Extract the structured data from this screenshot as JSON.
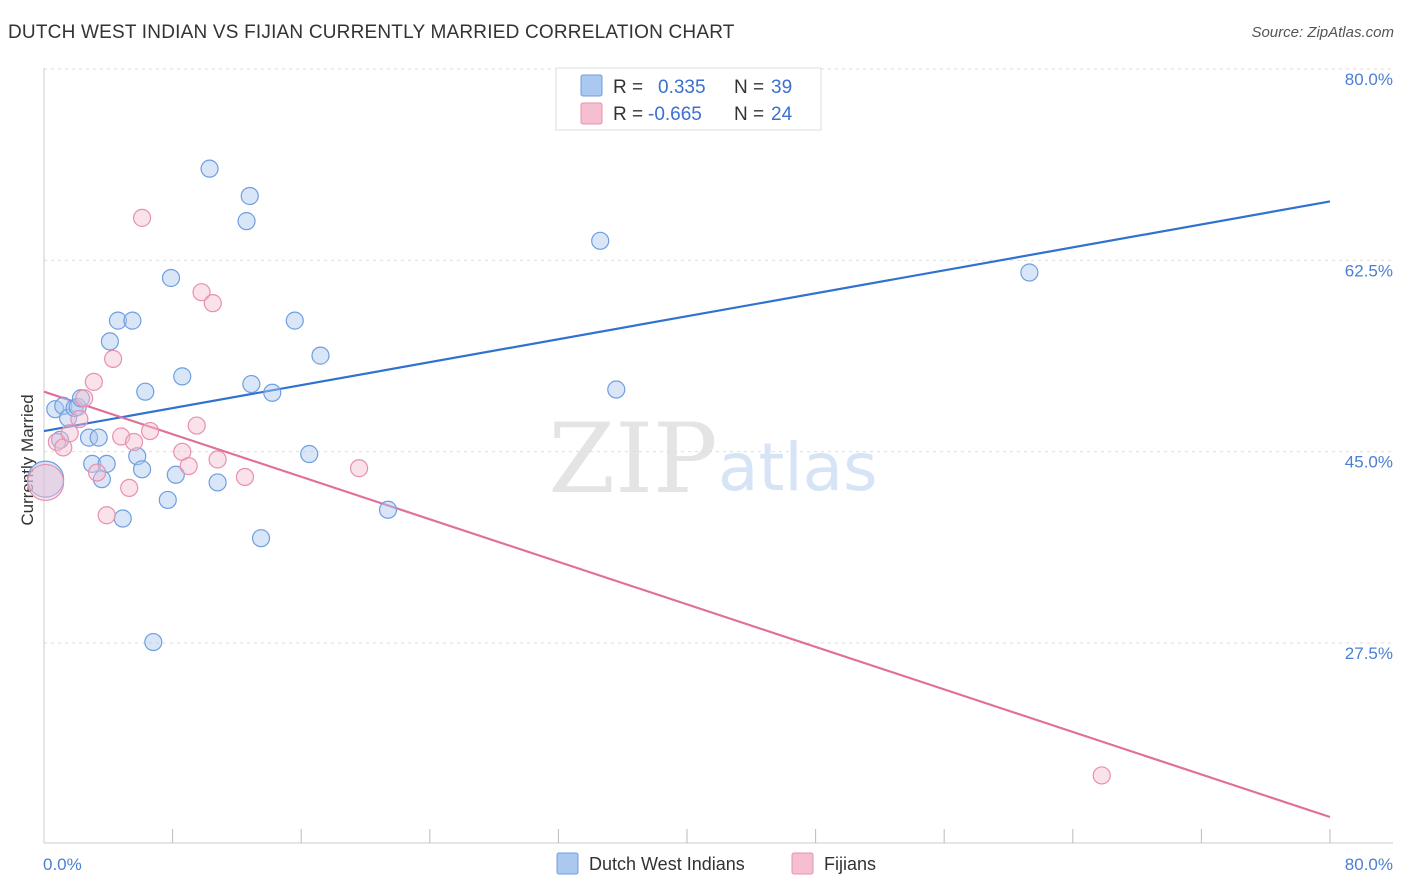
{
  "header": {
    "title": "DUTCH WEST INDIAN VS FIJIAN CURRENTLY MARRIED CORRELATION CHART",
    "source": "Source: ZipAtlas.com"
  },
  "watermark": {
    "zip": "ZIP",
    "atlas": "atlas"
  },
  "colors": {
    "blue_fill": "#aac8f0",
    "blue_stroke": "#6f9ee0",
    "blue_line": "#2f72d0",
    "pink_fill": "#f5bfd0",
    "pink_stroke": "#e890ae",
    "pink_line": "#e0709a",
    "grid": "#dddddd",
    "tick_text": "#4a7fd4"
  },
  "legend": {
    "rows": [
      {
        "r_label": "R =",
        "r_value": "0.335",
        "n_label": "N =",
        "n_value": "39",
        "series": "blue"
      },
      {
        "r_label": "R =",
        "r_value": "-0.665",
        "n_label": "N =",
        "n_value": "24",
        "series": "pink"
      }
    ]
  },
  "bottom_legend": {
    "items": [
      {
        "label": "Dutch West Indians",
        "series": "blue"
      },
      {
        "label": "Fijians",
        "series": "pink"
      }
    ]
  },
  "chart_data": {
    "type": "scatter",
    "title": "DUTCH WEST INDIAN VS FIJIAN CURRENTLY MARRIED CORRELATION CHART",
    "xlabel": "",
    "ylabel": "Currently Married",
    "xlim": [
      0,
      80
    ],
    "ylim": [
      10,
      82
    ],
    "x_tick_labels": [
      {
        "value": 0,
        "label": "0.0%"
      },
      {
        "value": 80,
        "label": "80.0%"
      }
    ],
    "y_ticks": [
      {
        "value": 80.0,
        "label": "80.0%"
      },
      {
        "value": 62.5,
        "label": "62.5%"
      },
      {
        "value": 45.0,
        "label": "45.0%"
      },
      {
        "value": 27.5,
        "label": "27.5%"
      }
    ],
    "x_minor_ticks": [
      8,
      16,
      24,
      32,
      40,
      48,
      56,
      64,
      72,
      80
    ],
    "series": [
      {
        "name": "Dutch West Indians",
        "color": "blue",
        "R": 0.335,
        "N": 39,
        "trend": {
          "x": [
            0,
            80
          ],
          "y": [
            47.8,
            68.8
          ]
        },
        "points": [
          {
            "x": 0.1,
            "y": 43.4,
            "big": true
          },
          {
            "x": 0.7,
            "y": 49.8
          },
          {
            "x": 1.0,
            "y": 47.0
          },
          {
            "x": 1.2,
            "y": 50.1
          },
          {
            "x": 1.5,
            "y": 49.0
          },
          {
            "x": 1.9,
            "y": 49.9
          },
          {
            "x": 2.1,
            "y": 50.0
          },
          {
            "x": 2.3,
            "y": 50.8
          },
          {
            "x": 2.8,
            "y": 47.2
          },
          {
            "x": 3.0,
            "y": 44.8
          },
          {
            "x": 3.4,
            "y": 47.2
          },
          {
            "x": 3.6,
            "y": 43.4
          },
          {
            "x": 3.9,
            "y": 44.8
          },
          {
            "x": 4.1,
            "y": 56.0
          },
          {
            "x": 4.6,
            "y": 57.9
          },
          {
            "x": 4.9,
            "y": 39.8
          },
          {
            "x": 5.5,
            "y": 57.9
          },
          {
            "x": 5.8,
            "y": 45.5
          },
          {
            "x": 6.1,
            "y": 44.3
          },
          {
            "x": 6.3,
            "y": 51.4
          },
          {
            "x": 6.8,
            "y": 28.5
          },
          {
            "x": 7.7,
            "y": 41.5
          },
          {
            "x": 7.9,
            "y": 61.8
          },
          {
            "x": 8.2,
            "y": 43.8
          },
          {
            "x": 8.6,
            "y": 52.8
          },
          {
            "x": 10.3,
            "y": 71.8
          },
          {
            "x": 10.8,
            "y": 43.1
          },
          {
            "x": 12.6,
            "y": 67.0
          },
          {
            "x": 12.8,
            "y": 69.3
          },
          {
            "x": 12.9,
            "y": 52.1
          },
          {
            "x": 13.5,
            "y": 38.0
          },
          {
            "x": 14.2,
            "y": 51.3
          },
          {
            "x": 15.6,
            "y": 57.9
          },
          {
            "x": 16.5,
            "y": 45.7
          },
          {
            "x": 17.2,
            "y": 54.7
          },
          {
            "x": 21.4,
            "y": 40.6
          },
          {
            "x": 34.6,
            "y": 65.2
          },
          {
            "x": 35.6,
            "y": 51.6
          },
          {
            "x": 61.3,
            "y": 62.3
          }
        ]
      },
      {
        "name": "Fijians",
        "color": "pink",
        "R": -0.665,
        "N": 24,
        "trend": {
          "x": [
            0,
            80
          ],
          "y": [
            51.4,
            12.5
          ]
        },
        "points": [
          {
            "x": 0.1,
            "y": 43.1,
            "big": true
          },
          {
            "x": 0.8,
            "y": 46.8
          },
          {
            "x": 1.2,
            "y": 46.3
          },
          {
            "x": 1.6,
            "y": 47.6
          },
          {
            "x": 2.2,
            "y": 48.9
          },
          {
            "x": 2.5,
            "y": 50.8
          },
          {
            "x": 3.1,
            "y": 52.3
          },
          {
            "x": 3.3,
            "y": 44.0
          },
          {
            "x": 3.9,
            "y": 40.1
          },
          {
            "x": 4.3,
            "y": 54.4
          },
          {
            "x": 4.8,
            "y": 47.3
          },
          {
            "x": 5.3,
            "y": 42.6
          },
          {
            "x": 5.6,
            "y": 46.8
          },
          {
            "x": 6.1,
            "y": 67.3
          },
          {
            "x": 6.6,
            "y": 47.8
          },
          {
            "x": 8.6,
            "y": 45.9
          },
          {
            "x": 9.0,
            "y": 44.6
          },
          {
            "x": 9.5,
            "y": 48.3
          },
          {
            "x": 9.8,
            "y": 60.5
          },
          {
            "x": 10.5,
            "y": 59.5
          },
          {
            "x": 10.8,
            "y": 45.2
          },
          {
            "x": 12.5,
            "y": 43.6
          },
          {
            "x": 19.6,
            "y": 44.4
          },
          {
            "x": 65.8,
            "y": 16.3
          }
        ]
      }
    ]
  }
}
